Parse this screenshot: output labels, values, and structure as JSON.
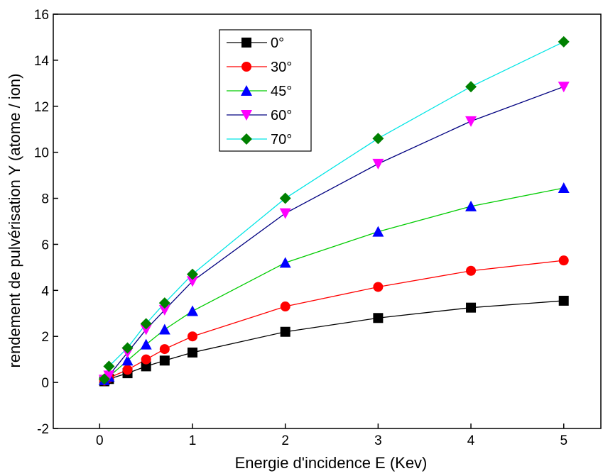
{
  "chart_data": {
    "type": "line",
    "xlabel": "Energie d'incidence E (Kev)",
    "ylabel": "rendement de pulvérisation Y (atome / ion)",
    "xlim": [
      -0.5,
      5.4
    ],
    "ylim": [
      -2,
      16
    ],
    "xticks": [
      0,
      1,
      2,
      3,
      4,
      5
    ],
    "yticks": [
      -2,
      0,
      2,
      4,
      6,
      8,
      10,
      12,
      14,
      16
    ],
    "grid": false,
    "legend_position": "top-left",
    "x": [
      0.05,
      0.1,
      0.3,
      0.5,
      0.7,
      1,
      2,
      3,
      4,
      5
    ],
    "series": [
      {
        "name": "0°",
        "color": "#000000",
        "marker": "square",
        "values": [
          0.05,
          0.15,
          0.4,
          0.7,
          0.95,
          1.3,
          2.2,
          2.8,
          3.25,
          3.55
        ]
      },
      {
        "name": "30°",
        "color": "#ff0000",
        "marker": "circle",
        "values": [
          0.08,
          0.2,
          0.55,
          1.0,
          1.45,
          2.0,
          3.3,
          4.15,
          4.85,
          5.3
        ]
      },
      {
        "name": "45°",
        "color": "#00cc00",
        "marker": "triangle-up",
        "marker_color": "#0000ff",
        "values": [
          0.1,
          0.25,
          0.95,
          1.65,
          2.3,
          3.1,
          5.2,
          6.55,
          7.65,
          8.45
        ]
      },
      {
        "name": "60°",
        "color": "#000080",
        "marker": "triangle-down",
        "marker_color": "#ff00ff",
        "values": [
          0.12,
          0.3,
          1.3,
          2.3,
          3.15,
          4.4,
          7.35,
          9.5,
          11.35,
          12.85
        ]
      },
      {
        "name": "70°",
        "color": "#00e5e5",
        "marker": "diamond",
        "marker_color": "#008000",
        "values": [
          0.15,
          0.7,
          1.5,
          2.55,
          3.45,
          4.7,
          8.0,
          10.6,
          12.85,
          14.8
        ]
      }
    ]
  }
}
